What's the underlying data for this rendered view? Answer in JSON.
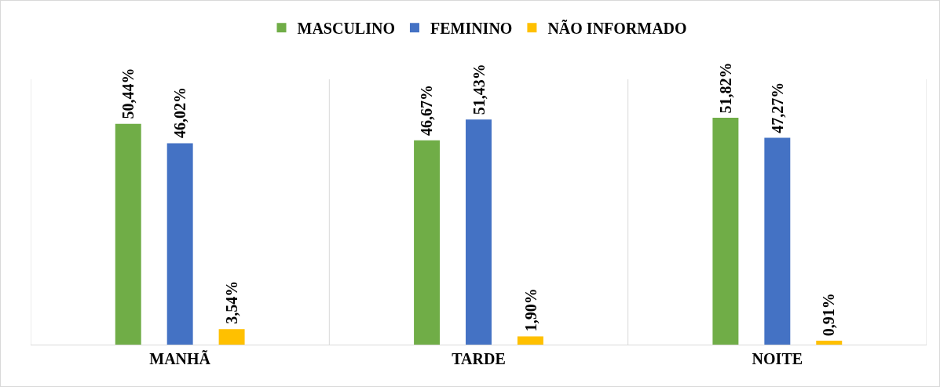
{
  "chart_data": {
    "type": "bar",
    "categories": [
      "MANHÃ",
      "TARDE",
      "NOITE"
    ],
    "series": [
      {
        "name": "MASCULINO",
        "color": "#70ad47",
        "values": [
          50.44,
          46.67,
          51.82
        ],
        "value_labels": [
          "50,44%",
          "46,67%",
          "51,82%"
        ]
      },
      {
        "name": "FEMININO",
        "color": "#4472c4",
        "values": [
          46.02,
          51.43,
          47.27
        ],
        "value_labels": [
          "46,02%",
          "51,43%",
          "47,27%"
        ]
      },
      {
        "name": "NÃO INFORMADO",
        "color": "#ffc000",
        "values": [
          3.54,
          1.9,
          0.91
        ],
        "value_labels": [
          "3,54%",
          "1,90%",
          "0,91%"
        ]
      }
    ],
    "grid": "x",
    "legend": "top",
    "tick_labels": "x"
  }
}
